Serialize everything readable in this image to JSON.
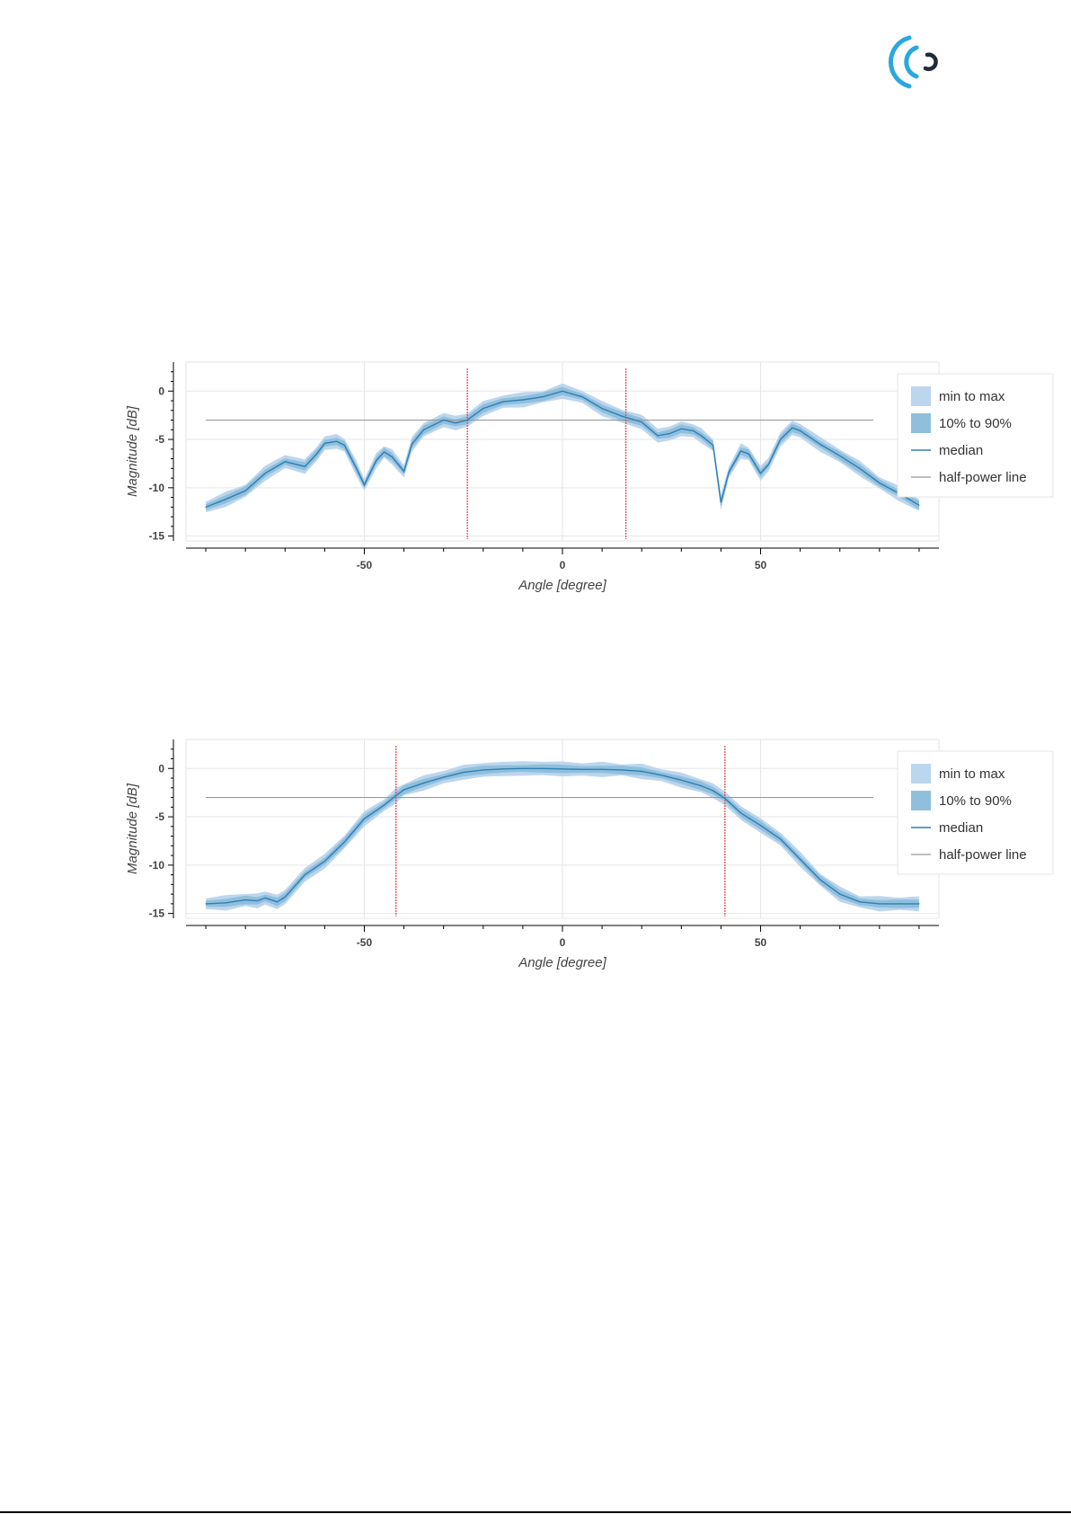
{
  "logo": {
    "icon": "wireless-signal-logo",
    "colors": {
      "arcs": "#29a8e0",
      "core": "#1d2b3a"
    }
  },
  "colors": {
    "range_band": "#bcd6ed",
    "percentile_band": "#8fbfdc",
    "median": "#2f7fb5",
    "half_power": "#9a9a9a",
    "marker": "#e8494d",
    "grid": "#e6e6e6"
  },
  "chart_data": [
    {
      "type": "line",
      "title": "",
      "xlabel": "Angle [degree]",
      "ylabel": "Magnitude [dB]",
      "xlim": [
        -95,
        95
      ],
      "ylim": [
        -15.5,
        3
      ],
      "x_ticks": [
        -50,
        0,
        50
      ],
      "x_tick_labels": [
        "-50",
        "0",
        "50"
      ],
      "y_ticks": [
        0,
        -5,
        -10,
        -15
      ],
      "y_tick_labels": [
        "0",
        "-5",
        "-10",
        "-15"
      ],
      "grid": true,
      "legend_position": "top-right",
      "legend": [
        "min to max",
        "10% to 90%",
        "median",
        "half-power line"
      ],
      "half_power_db": -3,
      "beamwidth_markers_deg": [
        -24,
        16
      ],
      "x": [
        -90,
        -85,
        -80,
        -75,
        -70,
        -65,
        -62,
        -60,
        -57,
        -55,
        -52,
        -50,
        -47,
        -45,
        -43,
        -40,
        -38,
        -35,
        -30,
        -27,
        -24,
        -20,
        -15,
        -10,
        -5,
        0,
        5,
        10,
        15,
        20,
        24,
        27,
        30,
        33,
        35,
        38,
        40,
        42,
        45,
        47,
        50,
        52,
        55,
        58,
        60,
        65,
        70,
        75,
        80,
        85,
        90
      ],
      "series": [
        {
          "name": "median",
          "values": [
            -12,
            -11.2,
            -10.3,
            -8.5,
            -7.3,
            -7.8,
            -6.5,
            -5.4,
            -5.2,
            -5.6,
            -8,
            -9.7,
            -7.2,
            -6.3,
            -6.8,
            -8.3,
            -5.5,
            -4,
            -3,
            -3.3,
            -3,
            -1.8,
            -1.1,
            -0.9,
            -0.6,
            0,
            -0.6,
            -1.8,
            -2.6,
            -3.2,
            -4.6,
            -4.4,
            -3.9,
            -4.1,
            -4.6,
            -5.6,
            -11.5,
            -8.4,
            -6.2,
            -6.5,
            -8.5,
            -7.6,
            -5,
            -3.8,
            -4.1,
            -5.5,
            -6.7,
            -8,
            -9.5,
            -10.6,
            -11.8
          ]
        }
      ]
    },
    {
      "type": "line",
      "title": "",
      "xlabel": "Angle [degree]",
      "ylabel": "Magnitude [dB]",
      "xlim": [
        -95,
        95
      ],
      "ylim": [
        -15.5,
        3
      ],
      "x_ticks": [
        -50,
        0,
        50
      ],
      "x_tick_labels": [
        "-50",
        "0",
        "50"
      ],
      "y_ticks": [
        0,
        -5,
        -10,
        -15
      ],
      "y_tick_labels": [
        "0",
        "-5",
        "-10",
        "-15"
      ],
      "grid": true,
      "legend_position": "top-right",
      "legend": [
        "min to max",
        "10% to 90%",
        "median",
        "half-power line"
      ],
      "half_power_db": -3,
      "beamwidth_markers_deg": [
        -42,
        41
      ],
      "x": [
        -90,
        -85,
        -80,
        -77,
        -75,
        -72,
        -70,
        -65,
        -60,
        -55,
        -50,
        -45,
        -42,
        -40,
        -35,
        -30,
        -25,
        -20,
        -15,
        -10,
        -5,
        0,
        5,
        10,
        15,
        20,
        25,
        30,
        35,
        38,
        41,
        45,
        50,
        55,
        60,
        65,
        70,
        75,
        80,
        85,
        90
      ],
      "series": [
        {
          "name": "median",
          "values": [
            -14,
            -13.9,
            -13.6,
            -13.7,
            -13.4,
            -13.8,
            -13.3,
            -11,
            -9.6,
            -7.6,
            -5.2,
            -3.8,
            -2.8,
            -2.2,
            -1.5,
            -0.9,
            -0.4,
            -0.15,
            -0.05,
            0,
            0,
            -0.05,
            -0.1,
            -0.1,
            -0.15,
            -0.3,
            -0.7,
            -1.2,
            -1.8,
            -2.3,
            -3.1,
            -4.6,
            -5.9,
            -7.3,
            -9.4,
            -11.5,
            -13,
            -13.8,
            -14,
            -14,
            -14
          ]
        }
      ]
    }
  ]
}
